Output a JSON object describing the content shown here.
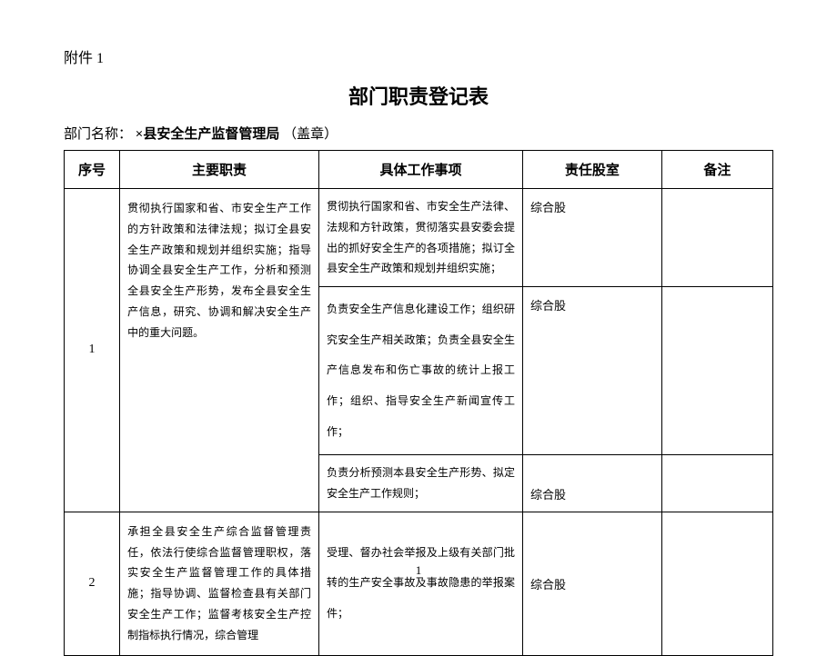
{
  "attachment_label": "附件 1",
  "title": "部门职责登记表",
  "dept_label": "部门名称：",
  "dept_name": "×县安全生产监督管理局",
  "dept_seal": "（盖章）",
  "columns": {
    "seq": "序号",
    "main_duty": "主要职责",
    "detail": "具体工作事项",
    "resp_dept": "责任股室",
    "note": "备注"
  },
  "rows": [
    {
      "seq": "1",
      "main_duty": "贯彻执行国家和省、市安全生产工作的方针政策和法律法规；拟订全县安全生产政策和规划并组织实施；指导协调全县安全生产工作，分析和预测全县安全生产形势，发布全县安全生产信息，研究、协调和解决安全生产中的重大问题。",
      "details": [
        {
          "text": "贯彻执行国家和省、市安全生产法律、法规和方针政策，贯彻落实县安委会提出的抓好安全生产的各项措施；拟订全县安全生产政策和规划并组织实施；",
          "dept": "综合股",
          "note": ""
        },
        {
          "text": "负责安全生产信息化建设工作；组织研究安全生产相关政策；负责全县安全生产信息发布和伤亡事故的统计上报工作；组织、指导安全生产新闻宣传工作；",
          "dept": "综合股",
          "note": ""
        },
        {
          "text": "负责分析预测本县安全生产形势、拟定安全生产工作规则；",
          "dept": "综合股",
          "note": ""
        }
      ]
    },
    {
      "seq": "2",
      "main_duty": "承担全县安全生产综合监督管理责任，依法行使综合监督管理职权，落实安全生产监督管理工作的具体措施；指导协调、监督检查县有关部门安全生产工作；监督考核安全生产控制指标执行情况，综合管理",
      "details": [
        {
          "text": "受理、督办社会举报及上级有关部门批转的生产安全事故及事故隐患的举报案件；",
          "dept": "综合股",
          "note": ""
        }
      ]
    }
  ],
  "page_number": "1"
}
